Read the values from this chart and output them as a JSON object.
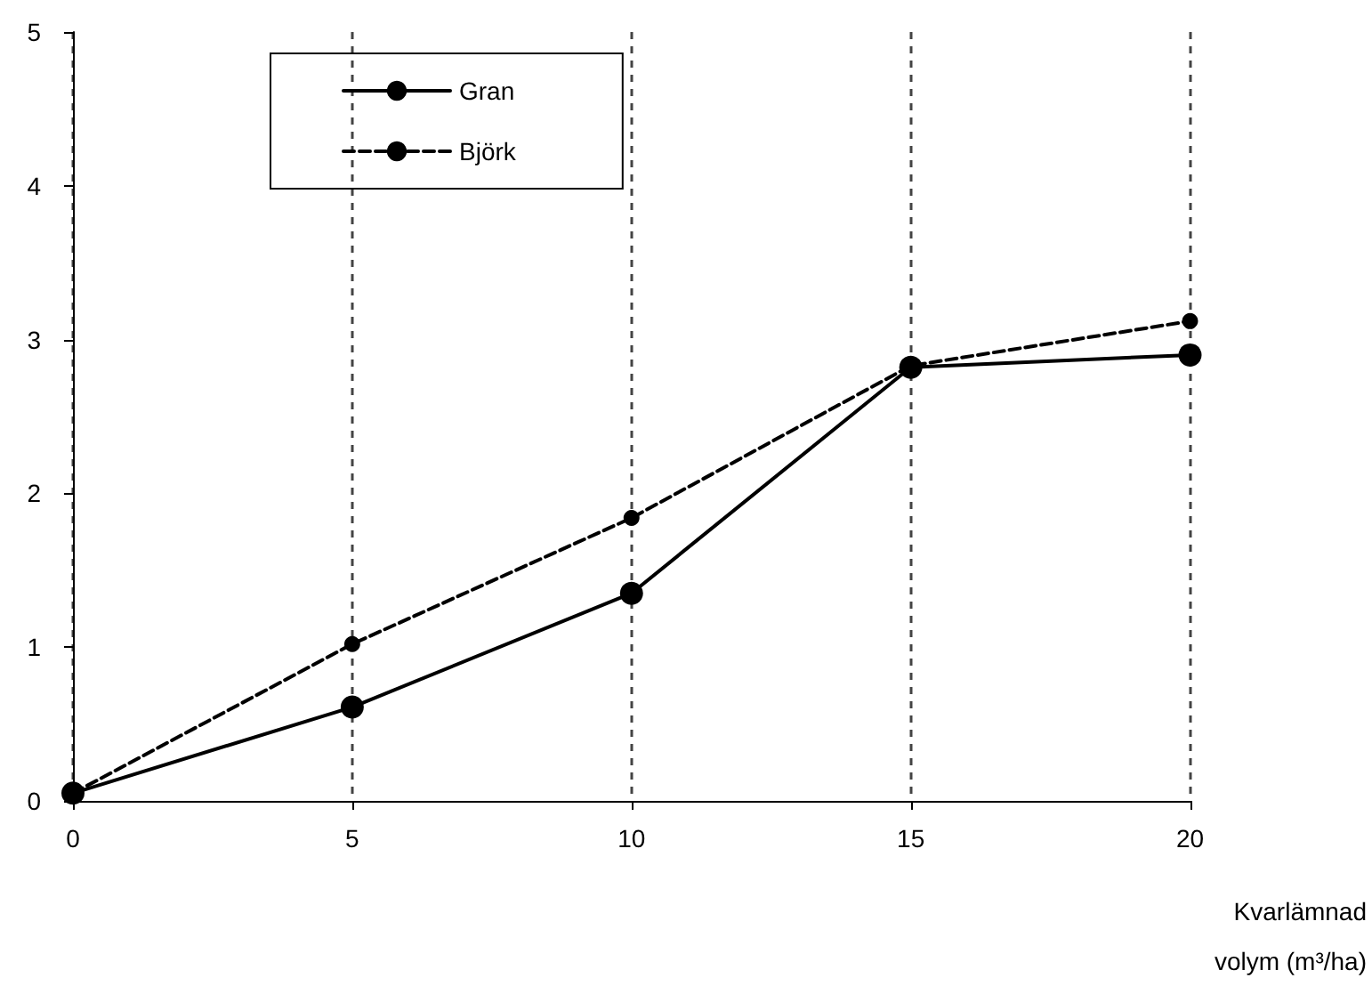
{
  "chart_data": {
    "type": "line",
    "xlabel": "Kvarlämnad\nvolym (m³/ha)",
    "x": [
      0,
      5,
      10,
      15,
      20
    ],
    "series": [
      {
        "name": "Gran",
        "color": "#000000",
        "values": [
          0.05,
          0.61,
          1.35,
          2.82,
          2.9
        ],
        "line_style": "solid"
      },
      {
        "name": "Björk",
        "color": "#000000",
        "values": [
          0.05,
          1.02,
          1.84,
          2.83,
          3.12
        ],
        "line_style": "dashed"
      }
    ],
    "xlim": [
      0,
      20
    ],
    "xticks": [
      0,
      5,
      10,
      15,
      20
    ],
    "ylim": [
      0,
      5
    ],
    "yticks": [
      0,
      1,
      2,
      3,
      4,
      5
    ],
    "grid": "x",
    "legend": "top left",
    "marker": "circle"
  }
}
